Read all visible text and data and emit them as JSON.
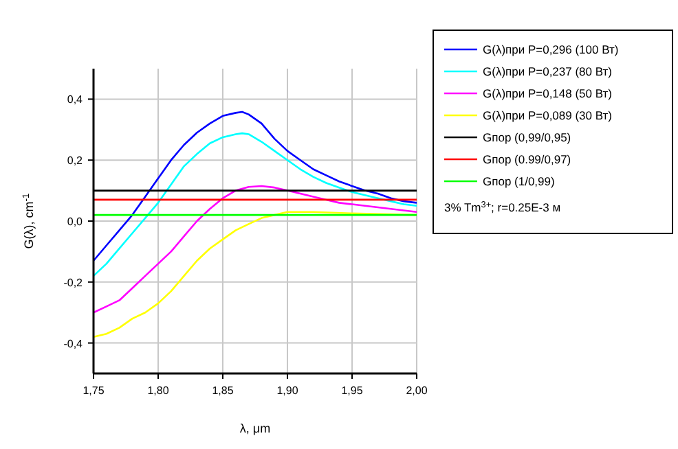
{
  "chart_data": {
    "type": "line",
    "xlabel": "λ, μm",
    "ylabel": "G(λ), cm$^{-1}$",
    "xlim": [
      1.75,
      2.0
    ],
    "xticks": [
      {
        "value": 1.75,
        "label": "1,75"
      },
      {
        "value": 1.8,
        "label": "1,80"
      },
      {
        "value": 1.85,
        "label": "1,85"
      },
      {
        "value": 1.9,
        "label": "1,90"
      },
      {
        "value": 1.95,
        "label": "1,95"
      },
      {
        "value": 2.0,
        "label": "2,00"
      }
    ],
    "ylim": [
      -0.5,
      0.5
    ],
    "yticks": [
      {
        "value": -0.4,
        "label": "-0,4"
      },
      {
        "value": -0.2,
        "label": "-0,2"
      },
      {
        "value": 0,
        "label": "0,0"
      },
      {
        "value": 0.2,
        "label": "0,2"
      },
      {
        "value": 0.4,
        "label": "0,4"
      }
    ],
    "grid": true,
    "legend": "right",
    "marker": "none",
    "line_style": "solid",
    "annotations": [
      "3% Tm$^{3+}$; r=0.25E-3 м"
    ],
    "series": [
      {
        "name": "G(λ)при P=0,296 (100 Вт)",
        "color": "#0000ff",
        "x": [
          1.75,
          1.76,
          1.77,
          1.78,
          1.79,
          1.8,
          1.81,
          1.82,
          1.83,
          1.84,
          1.85,
          1.86,
          1.865,
          1.87,
          1.88,
          1.89,
          1.9,
          1.91,
          1.92,
          1.93,
          1.94,
          1.95,
          1.96,
          1.97,
          1.98,
          1.99,
          2.0
        ],
        "values": [
          -0.13,
          -0.08,
          -0.03,
          0.02,
          0.08,
          0.14,
          0.2,
          0.25,
          0.29,
          0.32,
          0.345,
          0.355,
          0.358,
          0.35,
          0.32,
          0.27,
          0.23,
          0.2,
          0.17,
          0.15,
          0.13,
          0.115,
          0.1,
          0.09,
          0.075,
          0.065,
          0.06
        ]
      },
      {
        "name": "G(λ)при P=0,237 (80 Вт)",
        "color": "#00ffff",
        "x": [
          1.75,
          1.76,
          1.77,
          1.78,
          1.79,
          1.8,
          1.81,
          1.82,
          1.83,
          1.84,
          1.85,
          1.86,
          1.865,
          1.87,
          1.88,
          1.89,
          1.9,
          1.91,
          1.92,
          1.93,
          1.94,
          1.95,
          1.96,
          1.97,
          1.98,
          1.99,
          2.0
        ],
        "values": [
          -0.18,
          -0.14,
          -0.09,
          -0.04,
          0.01,
          0.06,
          0.12,
          0.18,
          0.22,
          0.255,
          0.275,
          0.285,
          0.288,
          0.285,
          0.26,
          0.23,
          0.2,
          0.17,
          0.145,
          0.125,
          0.11,
          0.095,
          0.085,
          0.075,
          0.065,
          0.055,
          0.05
        ]
      },
      {
        "name": "G(λ)при P=0,148 (50 Вт)",
        "color": "#ff00ff",
        "x": [
          1.75,
          1.76,
          1.77,
          1.78,
          1.79,
          1.8,
          1.81,
          1.82,
          1.83,
          1.84,
          1.85,
          1.86,
          1.87,
          1.88,
          1.89,
          1.9,
          1.91,
          1.92,
          1.93,
          1.94,
          1.95,
          1.96,
          1.97,
          1.98,
          1.99,
          2.0
        ],
        "values": [
          -0.3,
          -0.28,
          -0.26,
          -0.22,
          -0.18,
          -0.14,
          -0.1,
          -0.05,
          0.0,
          0.04,
          0.075,
          0.1,
          0.112,
          0.115,
          0.11,
          0.1,
          0.09,
          0.08,
          0.07,
          0.06,
          0.055,
          0.05,
          0.045,
          0.04,
          0.035,
          0.03
        ]
      },
      {
        "name": "G(λ)при P=0,089 (30 Вт)",
        "color": "#ffff00",
        "x": [
          1.75,
          1.76,
          1.77,
          1.78,
          1.79,
          1.8,
          1.81,
          1.82,
          1.83,
          1.84,
          1.85,
          1.86,
          1.87,
          1.88,
          1.89,
          1.9,
          1.92,
          1.95,
          2.0
        ],
        "values": [
          -0.38,
          -0.37,
          -0.35,
          -0.32,
          -0.3,
          -0.27,
          -0.23,
          -0.18,
          -0.13,
          -0.09,
          -0.06,
          -0.03,
          -0.01,
          0.01,
          0.02,
          0.03,
          0.03,
          0.025,
          0.02
        ]
      },
      {
        "name": "Gпор (0,99/0,95)",
        "color": "#000000",
        "x": [
          1.75,
          2.0
        ],
        "values": [
          0.1,
          0.1
        ]
      },
      {
        "name": "Gпор (0.99/0,97)",
        "color": "#ff0000",
        "x": [
          1.75,
          2.0
        ],
        "values": [
          0.07,
          0.07
        ]
      },
      {
        "name": "Gпор (1/0,99)",
        "color": "#00ff00",
        "x": [
          1.75,
          2.0
        ],
        "values": [
          0.02,
          0.02
        ]
      }
    ]
  }
}
